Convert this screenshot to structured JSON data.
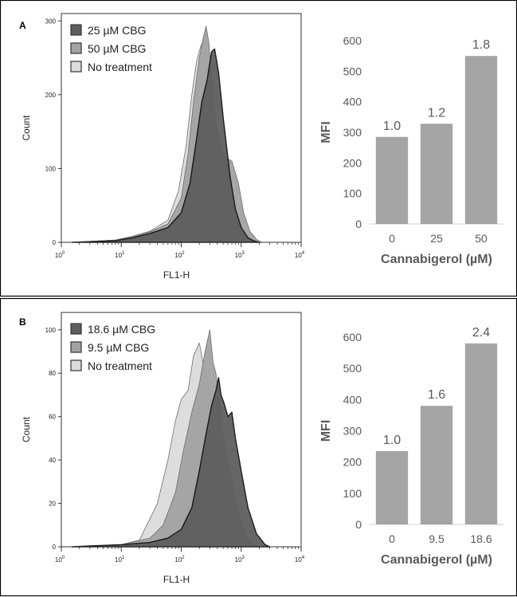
{
  "colors": {
    "hist_dark": "#5e5e5e",
    "hist_mid": "#a3a3a3",
    "hist_light": "#dcdcdc",
    "bar": "#a5a5a5",
    "bar_text": "#595959"
  },
  "chart_data": [
    {
      "panel": "A",
      "type": "area",
      "xlabel": "FL1-H",
      "ylabel": "Count",
      "x_scale": "log",
      "xlim": [
        1,
        10000
      ],
      "x_tick_exponents": [
        "0",
        "1",
        "2",
        "3",
        "4"
      ],
      "x_tick_base": "10",
      "ylim": [
        0,
        310
      ],
      "y_ticks": [
        0,
        100,
        200,
        300
      ],
      "legend_position": "top-left",
      "series": [
        {
          "name": "25 µM CBG",
          "style": "dark",
          "x": [
            1.5,
            8,
            15,
            30,
            60,
            100,
            140,
            180,
            220,
            270,
            320,
            360,
            420,
            500,
            650,
            800,
            1000,
            1300,
            1600,
            2000
          ],
          "y": [
            0,
            2,
            6,
            12,
            20,
            40,
            80,
            140,
            190,
            220,
            258,
            262,
            230,
            170,
            90,
            45,
            20,
            6,
            2,
            0
          ]
        },
        {
          "name": "50 µM CBG",
          "style": "mid",
          "x": [
            1.5,
            8,
            15,
            30,
            60,
            100,
            130,
            160,
            200,
            230,
            260,
            290,
            320,
            380,
            450,
            550,
            700,
            900,
            1100,
            1400,
            1800,
            2200
          ],
          "y": [
            0,
            3,
            8,
            14,
            25,
            60,
            120,
            190,
            250,
            275,
            293,
            270,
            220,
            160,
            130,
            115,
            110,
            80,
            40,
            15,
            4,
            0
          ]
        },
        {
          "name": "No treatment",
          "style": "light",
          "x": [
            1.5,
            8,
            15,
            30,
            60,
            90,
            120,
            150,
            180,
            210,
            240,
            280,
            320,
            380,
            450,
            550,
            700,
            900,
            1200,
            1600
          ],
          "y": [
            0,
            3,
            8,
            15,
            30,
            70,
            130,
            200,
            245,
            265,
            275,
            240,
            180,
            110,
            60,
            30,
            12,
            4,
            1,
            0
          ]
        }
      ],
      "legend": [
        "25 µM CBG",
        "50 µM CBG",
        "No treatment"
      ]
    },
    {
      "panel": "A",
      "type": "bar",
      "xlabel": "Cannabigerol (µM)",
      "ylabel": "MFI",
      "categories": [
        "0",
        "25",
        "50"
      ],
      "values": [
        285,
        328,
        550
      ],
      "data_labels": [
        "1.0",
        "1.2",
        "1.8"
      ],
      "ylim": [
        0,
        600
      ],
      "y_ticks": [
        "0",
        "100",
        "200",
        "300",
        "400",
        "500",
        "600"
      ]
    },
    {
      "panel": "B",
      "type": "area",
      "xlabel": "FL1-H",
      "ylabel": "Count",
      "x_scale": "log",
      "xlim": [
        1,
        10000
      ],
      "x_tick_exponents": [
        "0",
        "1",
        "2",
        "3",
        "4"
      ],
      "x_tick_base": "10",
      "ylim": [
        0,
        108
      ],
      "y_ticks": [
        0,
        20,
        40,
        60,
        80,
        100
      ],
      "legend_position": "top-left",
      "series": [
        {
          "name": "18.6 µM CBG",
          "style": "dark",
          "x": [
            1.5,
            10,
            30,
            60,
            100,
            150,
            200,
            260,
            320,
            380,
            420,
            460,
            520,
            600,
            700,
            800,
            1000,
            1300,
            1800,
            2500,
            3000
          ],
          "y": [
            0,
            1,
            2,
            4,
            8,
            18,
            35,
            52,
            65,
            72,
            78,
            70,
            66,
            60,
            62,
            50,
            35,
            18,
            6,
            1,
            0
          ]
        },
        {
          "name": "9.5 µM CBG",
          "style": "mid",
          "x": [
            1.5,
            10,
            30,
            50,
            80,
            110,
            150,
            200,
            250,
            300,
            340,
            380,
            430,
            500,
            600,
            700,
            900,
            1200,
            1600,
            2000
          ],
          "y": [
            0,
            1,
            4,
            10,
            25,
            45,
            62,
            75,
            90,
            100,
            85,
            80,
            68,
            50,
            40,
            30,
            16,
            5,
            1,
            0
          ]
        },
        {
          "name": "No treatment",
          "style": "light",
          "x": [
            1.5,
            10,
            20,
            40,
            60,
            80,
            100,
            130,
            160,
            200,
            250,
            300,
            350,
            400,
            500,
            600,
            800,
            1000,
            1400
          ],
          "y": [
            0,
            1,
            3,
            20,
            40,
            58,
            68,
            72,
            88,
            94,
            80,
            70,
            60,
            45,
            25,
            12,
            4,
            1,
            0
          ]
        }
      ],
      "legend": [
        "18.6 µM CBG",
        "9.5 µM CBG",
        "No treatment"
      ]
    },
    {
      "panel": "B",
      "type": "bar",
      "xlabel": "Cannabigerol (µM)",
      "ylabel": "MFI",
      "categories": [
        "0",
        "9.5",
        "18.6"
      ],
      "values": [
        235,
        380,
        580
      ],
      "data_labels": [
        "1.0",
        "1.6",
        "2.4"
      ],
      "ylim": [
        0,
        600
      ],
      "y_ticks": [
        "0",
        "100",
        "200",
        "300",
        "400",
        "500",
        "600"
      ]
    }
  ]
}
